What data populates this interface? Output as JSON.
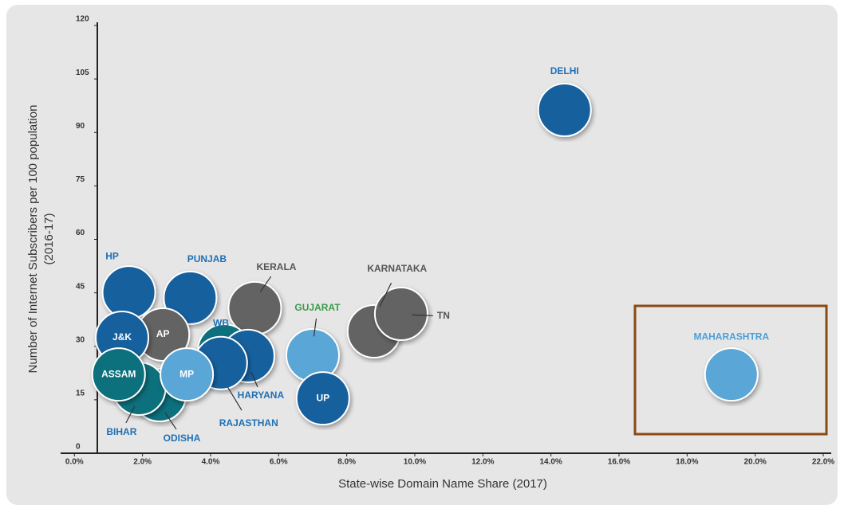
{
  "chart_data": {
    "type": "scatter",
    "xlabel": "State-wise Domain Name Share (2017)",
    "ylabel": [
      "Number of Internet Subscribers per 100 population",
      "(2016-17)"
    ],
    "xlim": [
      0,
      22
    ],
    "ylim": [
      0,
      120
    ],
    "xticks": [
      {
        "value": 0,
        "label": "0.0%"
      },
      {
        "value": 2,
        "label": "2.0%"
      },
      {
        "value": 4,
        "label": "4.0%"
      },
      {
        "value": 6,
        "label": "6.0%"
      },
      {
        "value": 8,
        "label": "8.0%"
      },
      {
        "value": 10,
        "label": "10.0%"
      },
      {
        "value": 12,
        "label": "12.0%"
      },
      {
        "value": 14,
        "label": "14.0%"
      },
      {
        "value": 16,
        "label": "16.0%"
      },
      {
        "value": 18,
        "label": "18.0%"
      },
      {
        "value": 20,
        "label": "20.0%"
      },
      {
        "value": 22,
        "label": "22.0%"
      }
    ],
    "yticks": [
      0,
      15,
      30,
      45,
      60,
      75,
      90,
      105,
      120
    ],
    "points": [
      {
        "name": "DELHI",
        "x": 14.4,
        "y": 96.3,
        "color": "#13609e"
      },
      {
        "name": "MAHARASHTRA",
        "x": 19.3,
        "y": 22.1,
        "color": "#5aa6d6"
      },
      {
        "name": "KARNATAKA",
        "x": 8.8,
        "y": 34.2,
        "color": "#636363"
      },
      {
        "name": "TN",
        "x": 9.6,
        "y": 39.1,
        "color": "#636363"
      },
      {
        "name": "KERALA",
        "x": 5.3,
        "y": 40.7,
        "color": "#636363"
      },
      {
        "name": "PUNJAB",
        "x": 3.4,
        "y": 43.6,
        "color": "#13609e"
      },
      {
        "name": "HP",
        "x": 1.6,
        "y": 45.1,
        "color": "#13609e"
      },
      {
        "name": "WB",
        "x": 4.4,
        "y": 28.8,
        "color": "#0f6f7d"
      },
      {
        "name": "HARYANA",
        "x": 5.1,
        "y": 27.3,
        "color": "#13609e"
      },
      {
        "name": "RAJASTHAN",
        "x": 4.3,
        "y": 25.3,
        "color": "#13609e"
      },
      {
        "name": "GUJARAT",
        "x": 7.0,
        "y": 27.5,
        "color": "#5aa6d6"
      },
      {
        "name": "UP",
        "x": 7.3,
        "y": 15.4,
        "color": "#13609e"
      },
      {
        "name": "AP",
        "x": 2.6,
        "y": 33.3,
        "color": "#636363"
      },
      {
        "name": "ODISHA",
        "x": 2.5,
        "y": 16.3,
        "color": "#0f6f7d"
      },
      {
        "name": "BIHAR",
        "x": 1.9,
        "y": 18.1,
        "color": "#0f6f7d"
      },
      {
        "name": "J&K",
        "x": 1.4,
        "y": 32.4,
        "color": "#13609e"
      },
      {
        "name": "ASSAM",
        "x": 1.3,
        "y": 22.1,
        "color": "#0f6f7d"
      },
      {
        "name": "MP",
        "x": 3.3,
        "y": 22.1,
        "color": "#5aa6d6"
      }
    ]
  }
}
